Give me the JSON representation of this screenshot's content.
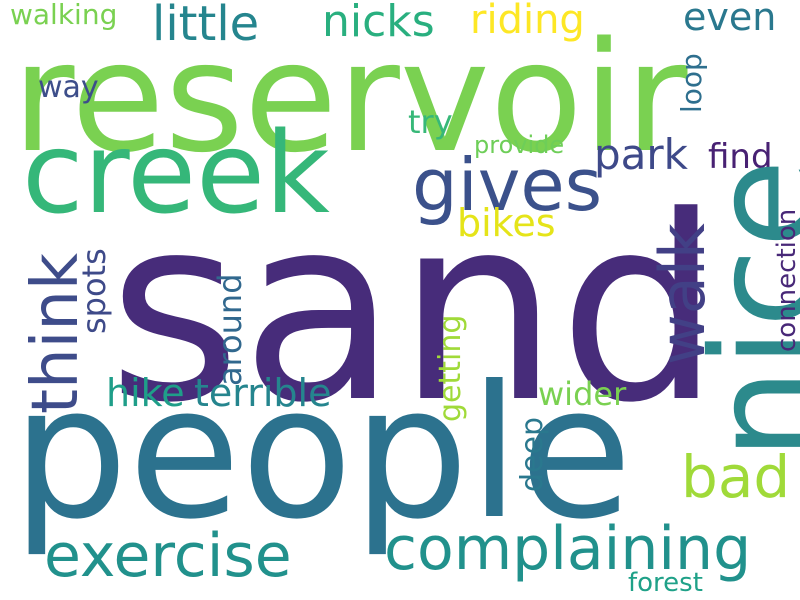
{
  "word_cloud": {
    "words": {
      "sand": {
        "text": "sand",
        "color": "#472c7a"
      },
      "people": {
        "text": "people",
        "color": "#2c728e"
      },
      "reservoir": {
        "text": "reservoir",
        "color": "#7ad151"
      },
      "nice": {
        "text": "nice",
        "color": "#2c8a8c"
      },
      "creek": {
        "text": "creek",
        "color": "#35b779"
      },
      "complaining": {
        "text": "complaining",
        "color": "#21918c"
      },
      "exercise": {
        "text": "exercise",
        "color": "#21918c"
      },
      "gives": {
        "text": "gives",
        "color": "#3b518b"
      },
      "walk": {
        "text": "walk",
        "color": "#424086"
      },
      "think": {
        "text": "think",
        "color": "#3e4c8a"
      },
      "little": {
        "text": "little",
        "color": "#25858e"
      },
      "nicks": {
        "text": "nicks",
        "color": "#29af7f"
      },
      "riding": {
        "text": "riding",
        "color": "#fde725"
      },
      "bad": {
        "text": "bad",
        "color": "#a0da39"
      },
      "park": {
        "text": "park",
        "color": "#3e4989"
      },
      "even": {
        "text": "even",
        "color": "#2a788e"
      },
      "terrible": {
        "text": "terrible",
        "color": "#25858e"
      },
      "hike": {
        "text": "hike",
        "color": "#1f9e89"
      },
      "bikes": {
        "text": "bikes",
        "color": "#e5e419"
      },
      "walking": {
        "text": "walking",
        "color": "#7ad151"
      },
      "spots": {
        "text": "spots",
        "color": "#3e4a89"
      },
      "around": {
        "text": "around",
        "color": "#31688e"
      },
      "getting": {
        "text": "getting",
        "color": "#a0da39"
      },
      "wider": {
        "text": "wider",
        "color": "#7ad151"
      },
      "deep": {
        "text": "deep",
        "color": "#2a788e"
      },
      "try": {
        "text": "try",
        "color": "#37b878"
      },
      "provide": {
        "text": "provide",
        "color": "#6ece58"
      },
      "find": {
        "text": "find",
        "color": "#482173"
      },
      "loop": {
        "text": "loop",
        "color": "#2e6f8e"
      },
      "way": {
        "text": "way",
        "color": "#3d4e8a"
      },
      "connection": {
        "text": "connection",
        "color": "#482878"
      },
      "forest": {
        "text": "forest",
        "color": "#1fa188"
      }
    }
  }
}
